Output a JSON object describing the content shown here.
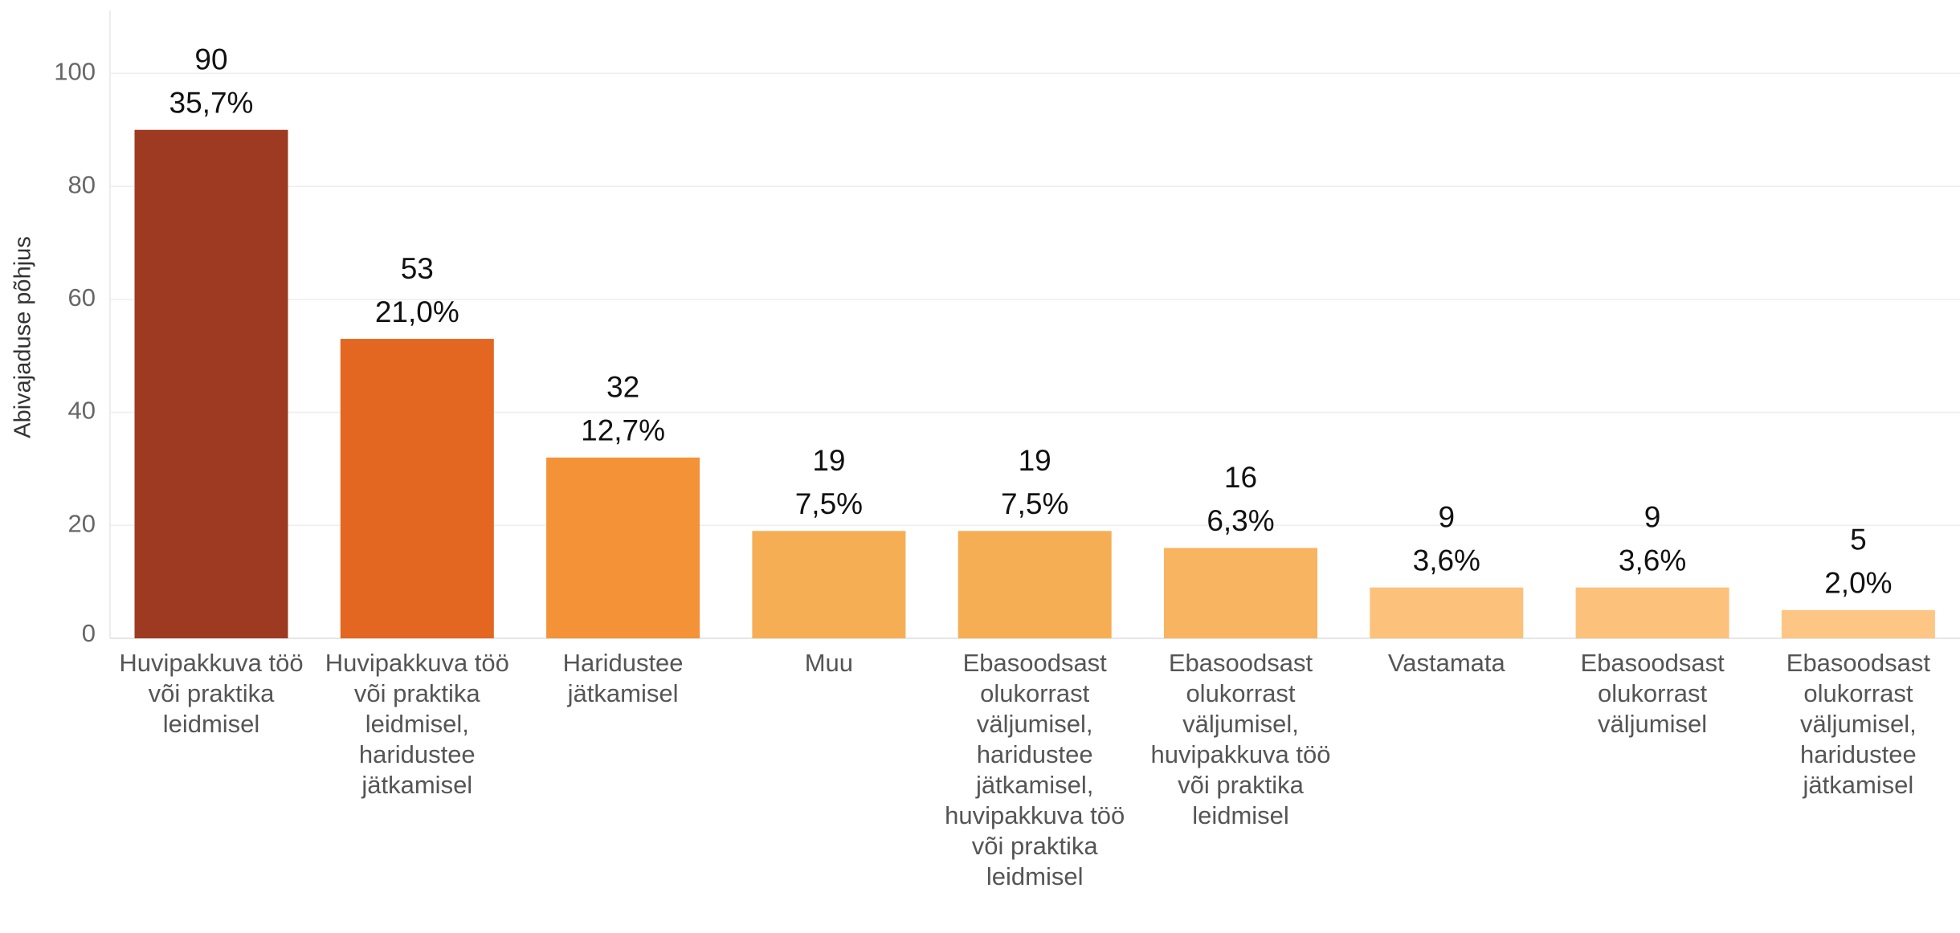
{
  "chart_data": {
    "type": "bar",
    "y_label": "Abivajaduse põhjus",
    "categories": [
      "Huvipakkuva töö või praktika leidmisel",
      "Huvipakkuva töö või praktika leidmisel, haridustee jätkamisel",
      "Haridustee jätkamisel",
      "Muu",
      "Ebasoodsast olukorrast väljumisel, haridustee jätkamisel, huvipakkuva töö või praktika leidmisel",
      "Ebasoodsast olukorrast väljumisel, huvipakkuva töö või praktika leidmisel",
      "Vastamata",
      "Ebasoodsast olukorrast väljumisel",
      "Ebasoodsast olukorrast väljumisel, haridustee jätkamisel"
    ],
    "values": [
      90,
      53,
      32,
      19,
      19,
      16,
      9,
      9,
      5
    ],
    "percentages": [
      35.7,
      21.0,
      12.7,
      7.5,
      7.5,
      6.3,
      3.6,
      3.6,
      2.0
    ],
    "percentage_labels": [
      "35,7%",
      "21,0%",
      "12,7%",
      "7,5%",
      "7,5%",
      "6,3%",
      "3,6%",
      "3,6%",
      "2,0%"
    ],
    "colors": [
      "#9e3a21",
      "#e36621",
      "#f39237",
      "#f6ae55",
      "#f6ae55",
      "#f8b460",
      "#fcc17b",
      "#fcc17b",
      "#fdc684"
    ],
    "ylim": [
      0,
      110
    ],
    "yticks": [
      0,
      20,
      40,
      60,
      80,
      100
    ],
    "grid": true
  }
}
